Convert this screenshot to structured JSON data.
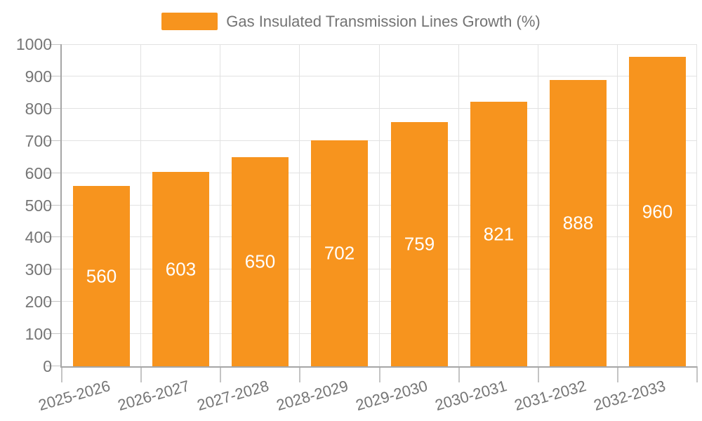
{
  "legend": {
    "label": "Gas Insulated Transmission Lines Growth (%)"
  },
  "chart_data": {
    "type": "bar",
    "title": "",
    "categories": [
      "2025-2026",
      "2026-2027",
      "2027-2028",
      "2028-2029",
      "2029-2030",
      "2030-2031",
      "2031-2032",
      "2032-2033"
    ],
    "series": [
      {
        "name": "Gas Insulated Transmission Lines Growth (%)",
        "values": [
          560,
          603,
          650,
          702,
          759,
          821,
          888,
          960
        ]
      }
    ],
    "xlabel": "",
    "ylabel": "",
    "ylim": [
      0,
      1000
    ],
    "ytick_step": 100,
    "ytick_labels": [
      "0",
      "100",
      "200",
      "300",
      "400",
      "500",
      "600",
      "700",
      "800",
      "900",
      "1000"
    ],
    "grid": true,
    "legend_position": "top-center",
    "bar_label_position": "inside-center",
    "x_label_rotation_deg": -16
  },
  "colors": {
    "bar": "#f7941e",
    "bar_value_label": "#ffffff",
    "gridline": "#e2e2e2",
    "axis_line": "#a6a6a6",
    "tick": "#c4c4c4",
    "axis_text": "#757575",
    "legend_text": "#737373",
    "background": "#ffffff"
  }
}
